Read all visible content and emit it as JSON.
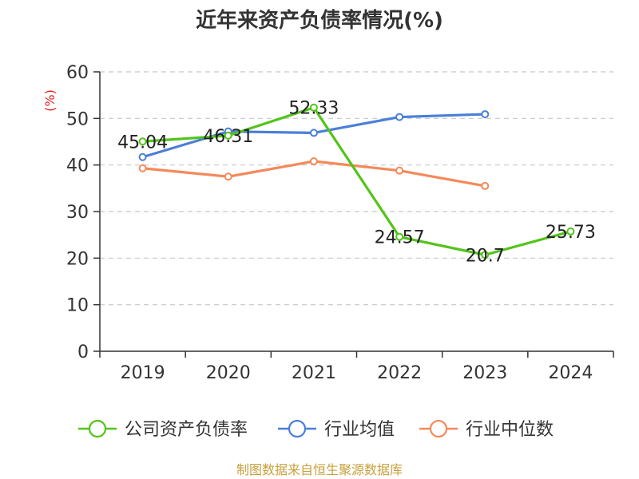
{
  "chart_data": {
    "type": "line",
    "title": "近年来资产负债率情况(%)",
    "ylabel": "(%)",
    "categories": [
      "2019",
      "2020",
      "2021",
      "2022",
      "2023",
      "2024"
    ],
    "ylim": [
      0,
      60
    ],
    "yticks": [
      0,
      10,
      20,
      30,
      40,
      50,
      60
    ],
    "grid": true,
    "legend_position": "bottom",
    "series": [
      {
        "name": "公司资产负债率",
        "color": "#52c41a",
        "values": [
          45.04,
          46.31,
          52.33,
          24.57,
          20.7,
          25.73
        ],
        "labels": [
          "45.04",
          "46.31",
          "52.33",
          "24.57",
          "20.7",
          "25.73"
        ]
      },
      {
        "name": "行业均值",
        "color": "#4a7fd8",
        "values": [
          41.7,
          47.2,
          46.9,
          50.3,
          50.9,
          null
        ]
      },
      {
        "name": "行业中位数",
        "color": "#f5895a",
        "values": [
          39.3,
          37.5,
          40.8,
          38.8,
          35.5,
          null
        ]
      }
    ]
  },
  "source": "制图数据来自恒生聚源数据库"
}
